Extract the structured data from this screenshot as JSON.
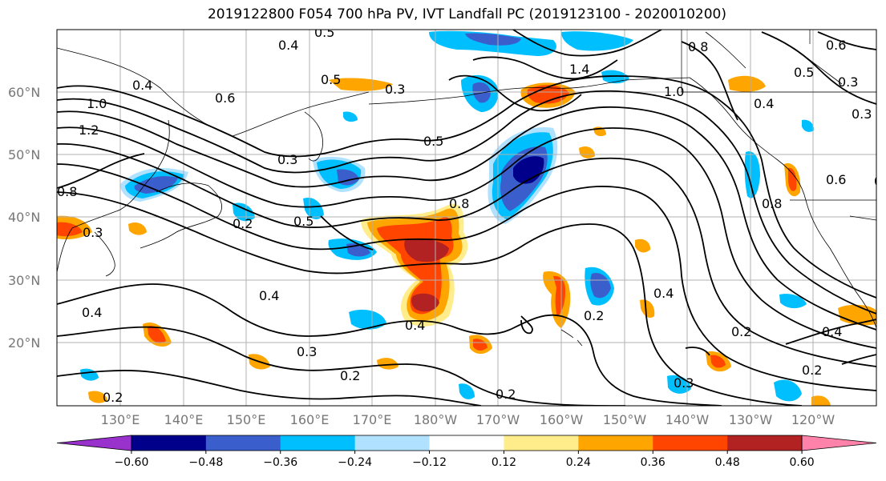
{
  "title": "2019122800 F054 700 hPa PV, IVT Landfall PC (2019123100 - 2020010200)",
  "lat_labels": [
    "60°N",
    "50°N",
    "40°N",
    "30°N",
    "20°N"
  ],
  "lon_labels": [
    "130°E",
    "140°E",
    "150°E",
    "160°E",
    "170°E",
    "180°W",
    "170°W",
    "160°W",
    "150°W",
    "140°W",
    "130°W",
    "120°W"
  ],
  "colorbar": {
    "colors": [
      "#9932cc",
      "#00008b",
      "#3a5fcd",
      "#00bfff",
      "#b0e2ff",
      "#ffffff",
      "#ffec8b",
      "#ffa500",
      "#ff4500",
      "#b22222",
      "#ff82ab"
    ],
    "tick_labels": [
      "−0.60",
      "−0.48",
      "−0.36",
      "−0.24",
      "−0.12",
      "0.12",
      "0.24",
      "0.36",
      "0.48",
      "0.60"
    ]
  },
  "contour_labels": [
    "0.4",
    "0.6",
    "0.5",
    "0.3",
    "1.0",
    "1.2",
    "1.4",
    "0.8",
    "0.8",
    "0.6",
    "0.5",
    "0.4",
    "0.3",
    "0.4",
    "0.4",
    "0.8",
    "0.6",
    "0.5",
    "0.3",
    "0.3",
    "0.5",
    "0.2",
    "0.2",
    "0.4",
    "0.4",
    "0.4",
    "0.3",
    "0.2",
    "0.2",
    "0.3",
    "0.2",
    "0.4",
    "0.2",
    "0.8",
    "0.6",
    "0.4",
    "0.2",
    "0.3",
    "0.2",
    "0.4"
  ],
  "shaded_colors": {
    "neg_light": "#b0e2ff",
    "neg_mid": "#00bfff",
    "neg_strong": "#3a5fcd",
    "neg_max": "#00008b",
    "pos_light": "#ffec8b",
    "pos_mid": "#ffa500",
    "pos_strong": "#ff4500",
    "pos_max": "#b22222"
  }
}
